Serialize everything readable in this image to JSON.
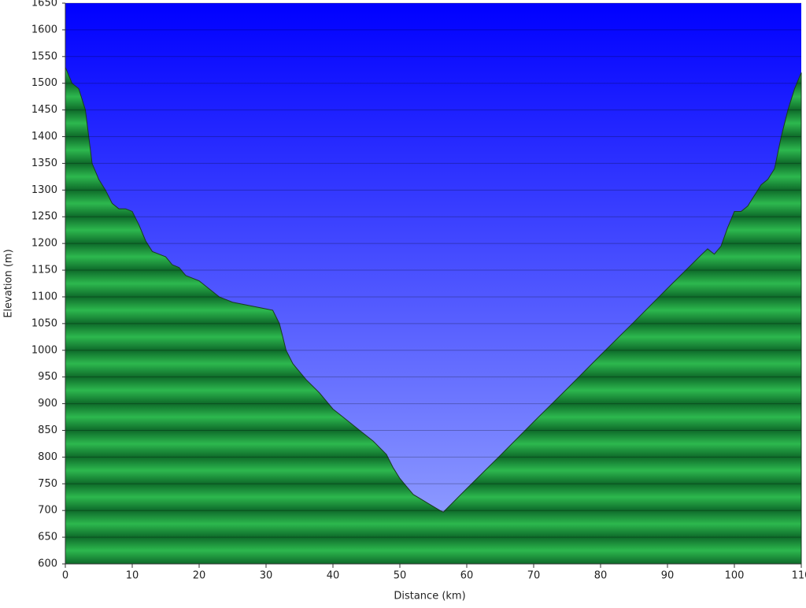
{
  "chart_data": {
    "type": "area",
    "x_label": "Distance  (km)",
    "y_label": "Elevation (m)",
    "x": [
      0,
      1,
      2,
      3,
      4,
      5,
      6,
      7,
      8,
      9,
      10,
      11,
      12,
      13,
      14,
      15,
      16,
      17,
      18,
      19,
      20,
      21,
      22,
      23,
      25,
      27,
      29,
      31,
      32,
      33,
      34,
      35,
      36,
      38,
      40,
      42,
      44,
      46,
      48,
      49,
      50,
      51,
      52,
      54,
      56,
      56.5,
      60,
      65,
      70,
      75,
      80,
      85,
      90,
      95,
      96,
      97,
      98,
      99,
      100,
      101,
      102,
      103,
      104,
      105,
      106,
      107,
      108,
      109,
      110
    ],
    "values": [
      1530,
      1500,
      1490,
      1450,
      1350,
      1320,
      1300,
      1275,
      1265,
      1265,
      1260,
      1235,
      1205,
      1185,
      1180,
      1175,
      1160,
      1155,
      1140,
      1135,
      1130,
      1120,
      1110,
      1100,
      1090,
      1085,
      1080,
      1075,
      1050,
      1000,
      975,
      960,
      945,
      920,
      890,
      870,
      850,
      830,
      805,
      780,
      760,
      745,
      730,
      715,
      700,
      697,
      741,
      803,
      866,
      928,
      991,
      1053,
      1116,
      1178,
      1190,
      1180,
      1195,
      1230,
      1260,
      1260,
      1270,
      1290,
      1310,
      1320,
      1340,
      1400,
      1450,
      1490,
      1520
    ],
    "xlim": [
      0,
      110
    ],
    "ylim": [
      600,
      1650
    ],
    "xticks": [
      0,
      10,
      20,
      30,
      40,
      50,
      60,
      70,
      80,
      90,
      100,
      110
    ],
    "yticks": [
      600,
      650,
      700,
      750,
      800,
      850,
      900,
      950,
      1000,
      1050,
      1100,
      1150,
      1200,
      1250,
      1300,
      1350,
      1400,
      1450,
      1500,
      1550,
      1600,
      1650
    ],
    "grid": true,
    "sky_color": [
      "#0000ff",
      "#9aa8ff"
    ],
    "ground_color": [
      "#0e6a2a",
      "#2db84e"
    ],
    "line_color": "#1a3a20"
  }
}
